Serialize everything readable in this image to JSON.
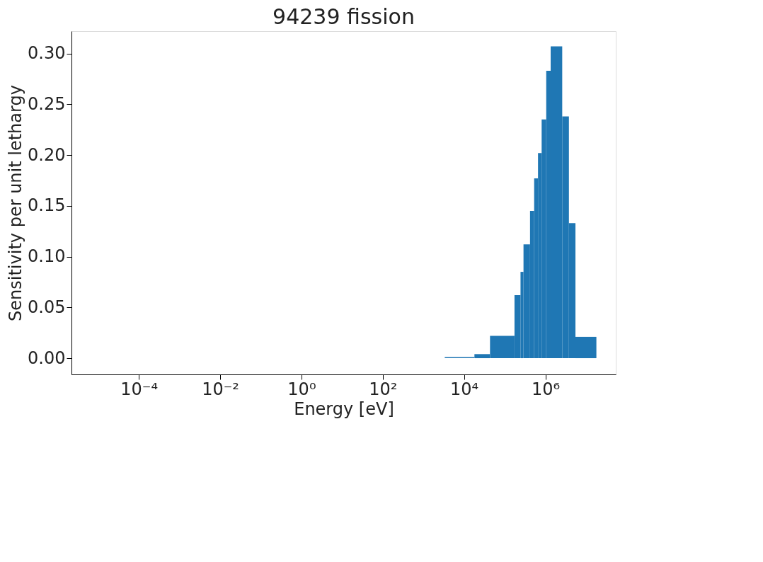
{
  "chart_data": {
    "type": "histogram",
    "title": "94239 fission",
    "xlabel": "Energy [eV]",
    "ylabel": "Sensitivity per unit lethargy",
    "log": "x",
    "grid": false,
    "color": "#1f77b4",
    "bins": [
      3350.0,
      18000.0,
      43500.0,
      174000.0,
      245000.0,
      290000.0,
      420000.0,
      530000.0,
      660000.0,
      810000.0,
      1050000.0,
      1350000.0,
      2600000.0,
      3800000.0,
      5500000.0,
      18000000.0
    ],
    "values": [
      0.001,
      0.004,
      0.022,
      0.062,
      0.085,
      0.112,
      0.145,
      0.177,
      0.202,
      0.235,
      0.283,
      0.307,
      0.238,
      0.133,
      0.021
    ],
    "xlim": [
      2.2e-06,
      54000000.0
    ],
    "ylim": [
      -0.016,
      0.322
    ],
    "xticks": [
      {
        "value": 0.0001,
        "label": "10⁻⁴"
      },
      {
        "value": 0.01,
        "label": "10⁻²"
      },
      {
        "value": 1,
        "label": "10⁰"
      },
      {
        "value": 100,
        "label": "10²"
      },
      {
        "value": 10000.0,
        "label": "10⁴"
      },
      {
        "value": 1000000.0,
        "label": "10⁶"
      }
    ],
    "yticks": [
      {
        "value": 0,
        "label": "0.00"
      },
      {
        "value": 0.05,
        "label": "0.05"
      },
      {
        "value": 0.1,
        "label": "0.10"
      },
      {
        "value": 0.15,
        "label": "0.15"
      },
      {
        "value": 0.2,
        "label": "0.20"
      },
      {
        "value": 0.25,
        "label": "0.25"
      },
      {
        "value": 0.3,
        "label": "0.30"
      }
    ]
  }
}
